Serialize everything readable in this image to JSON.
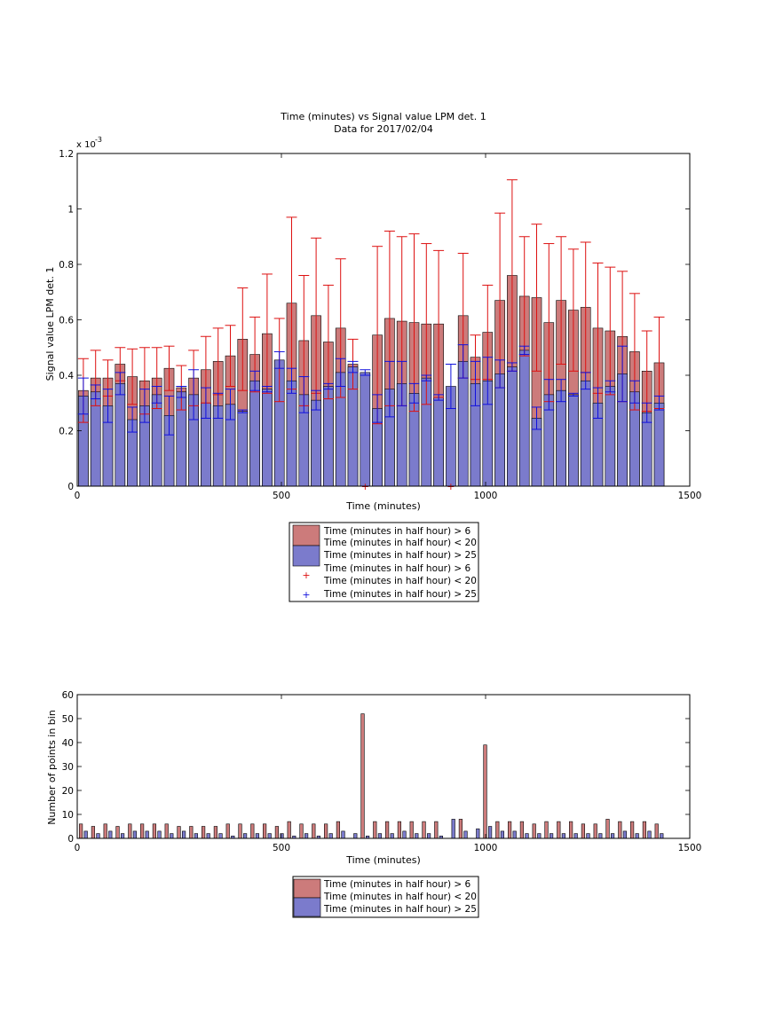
{
  "colors": {
    "red_bar": "#cc7b7b",
    "blue_bar": "#7b7bcc",
    "red_err": "#dd1111",
    "blue_err": "#1111dd"
  },
  "chart_data": [
    {
      "type": "bar",
      "title": "Time (minutes) vs Signal value LPM det. 1",
      "subtitle": "Data for 2017/02/04",
      "xlabel": "Time (minutes)",
      "ylabel": "Signal value LPM det. 1",
      "y_exponent_label": "x 10",
      "y_exponent_power": "-3",
      "xlim": [
        0,
        1500
      ],
      "ylim": [
        0,
        1.2
      ],
      "xticks": [
        "0",
        "500",
        "1000",
        "1500"
      ],
      "yticks": [
        "0",
        "0.2",
        "0.4",
        "0.6",
        "0.8",
        "1",
        "1.2"
      ],
      "grid": false,
      "legend": "below",
      "legend_entries": [
        "Time (minutes in half hour) > 6",
        "Time (minutes in half hour) < 20",
        "Time (minutes in half hour) > 25",
        "Time (minutes in half hour) > 6",
        "Time (minutes in half hour) < 20",
        "Time (minutes in half hour) > 25"
      ],
      "x": [
        15,
        45,
        75,
        105,
        135,
        165,
        195,
        225,
        255,
        285,
        315,
        345,
        375,
        405,
        435,
        465,
        495,
        525,
        555,
        585,
        615,
        645,
        675,
        705,
        735,
        765,
        795,
        825,
        855,
        885,
        915,
        945,
        975,
        1005,
        1035,
        1065,
        1095,
        1125,
        1155,
        1185,
        1215,
        1245,
        1275,
        1305,
        1335,
        1365,
        1395,
        1425
      ],
      "series": [
        {
          "name": "Time (minutes in half hour) > 6",
          "values": [
            0.345,
            0.39,
            0.39,
            0.44,
            0.395,
            0.38,
            0.39,
            0.425,
            0.355,
            0.39,
            0.42,
            0.45,
            0.47,
            0.53,
            0.475,
            0.55,
            0.455,
            0.66,
            0.525,
            0.615,
            0.52,
            0.57,
            0.44,
            null,
            0.545,
            0.605,
            0.595,
            0.59,
            0.585,
            0.585,
            null,
            0.615,
            0.465,
            0.555,
            0.67,
            0.76,
            0.685,
            0.68,
            0.59,
            0.67,
            0.635,
            0.645,
            0.57,
            0.56,
            0.54,
            0.485,
            0.415,
            0.445
          ],
          "errors": [
            0.115,
            0.1,
            0.065,
            0.06,
            0.1,
            0.12,
            0.11,
            0.08,
            0.08,
            0.1,
            0.12,
            0.12,
            0.11,
            0.185,
            0.135,
            0.215,
            0.15,
            0.31,
            0.235,
            0.28,
            0.205,
            0.25,
            0.09,
            null,
            0.32,
            0.315,
            0.305,
            0.32,
            0.29,
            0.265,
            null,
            0.225,
            0.08,
            0.17,
            0.315,
            0.345,
            0.215,
            0.265,
            0.285,
            0.23,
            0.22,
            0.235,
            0.235,
            0.23,
            0.235,
            0.21,
            0.145,
            0.165
          ],
          "markers_at_zero": [
            null,
            null,
            null,
            null,
            null,
            null,
            null,
            null,
            null,
            null,
            null,
            null,
            null,
            null,
            null,
            null,
            null,
            null,
            null,
            null,
            null,
            null,
            null,
            "+",
            null,
            null,
            null,
            null,
            null,
            null,
            "+",
            null,
            null,
            null,
            null,
            null,
            null,
            null,
            null,
            null,
            null,
            null,
            null,
            null,
            null,
            null,
            null,
            null
          ]
        },
        {
          "name": "Time (minutes in half hour) > 25",
          "values": [
            0.325,
            0.34,
            0.29,
            0.37,
            0.24,
            0.29,
            0.33,
            0.255,
            0.34,
            0.33,
            0.3,
            0.29,
            0.295,
            0.27,
            0.38,
            0.35,
            0.455,
            0.38,
            0.33,
            0.31,
            0.36,
            0.41,
            0.43,
            0.41,
            0.28,
            0.35,
            0.37,
            0.335,
            0.39,
            0.32,
            0.36,
            0.45,
            0.37,
            0.38,
            0.405,
            0.43,
            0.49,
            0.245,
            0.33,
            0.345,
            0.33,
            0.38,
            0.3,
            0.36,
            0.405,
            0.34,
            0.265,
            0.3
          ],
          "errors": [
            0.065,
            0.025,
            0.06,
            0.04,
            0.045,
            0.06,
            0.03,
            0.07,
            0.02,
            0.09,
            0.055,
            0.045,
            0.055,
            0.005,
            0.035,
            0.01,
            0.03,
            0.045,
            0.065,
            0.035,
            0.01,
            0.05,
            0.02,
            0.01,
            0.05,
            0.1,
            0.08,
            0.035,
            0.01,
            0.01,
            0.08,
            0.06,
            0.08,
            0.085,
            0.05,
            0.015,
            0.015,
            0.04,
            0.055,
            0.04,
            0.005,
            0.03,
            0.055,
            0.02,
            0.1,
            0.04,
            0.035,
            0.025
          ],
          "markers_at_zero": []
        }
      ]
    },
    {
      "type": "bar",
      "title": "",
      "xlabel": "Time (minutes)",
      "ylabel": "Number of points in bin",
      "xlim": [
        0,
        1500
      ],
      "ylim": [
        0,
        60
      ],
      "xticks": [
        "0",
        "500",
        "1000",
        "1500"
      ],
      "yticks": [
        "0",
        "10",
        "20",
        "30",
        "40",
        "50",
        "60"
      ],
      "grid": false,
      "legend": "below",
      "legend_entries": [
        "Time (minutes in half hour) > 6",
        "Time (minutes in half hour) < 20",
        "Time (minutes in half hour) > 25"
      ],
      "x": [
        15,
        45,
        75,
        105,
        135,
        165,
        195,
        225,
        255,
        285,
        315,
        345,
        375,
        405,
        435,
        465,
        495,
        525,
        555,
        585,
        615,
        645,
        675,
        705,
        735,
        765,
        795,
        825,
        855,
        885,
        915,
        945,
        975,
        1005,
        1035,
        1065,
        1095,
        1125,
        1155,
        1185,
        1215,
        1245,
        1275,
        1305,
        1335,
        1365,
        1395,
        1425
      ],
      "series": [
        {
          "name": "Time (minutes in half hour) > 6",
          "values": [
            6,
            5,
            6,
            5,
            6,
            6,
            6,
            6,
            5,
            5,
            5,
            5,
            6,
            6,
            6,
            6,
            5,
            7,
            6,
            6,
            6,
            7,
            0,
            52,
            7,
            7,
            7,
            7,
            7,
            7,
            0,
            8,
            0,
            39,
            7,
            7,
            7,
            6,
            7,
            7,
            7,
            6,
            6,
            8,
            7,
            7,
            7,
            6
          ]
        },
        {
          "name": "Time (minutes in half hour) > 25",
          "values": [
            3,
            2,
            3,
            2,
            3,
            3,
            3,
            2,
            3,
            2,
            2,
            2,
            1,
            2,
            2,
            2,
            2,
            1,
            2,
            1,
            2,
            3,
            2,
            1,
            2,
            2,
            3,
            2,
            2,
            1,
            8,
            3,
            4,
            5,
            3,
            3,
            2,
            2,
            2,
            2,
            2,
            2,
            2,
            2,
            3,
            2,
            3,
            2
          ]
        }
      ]
    }
  ]
}
